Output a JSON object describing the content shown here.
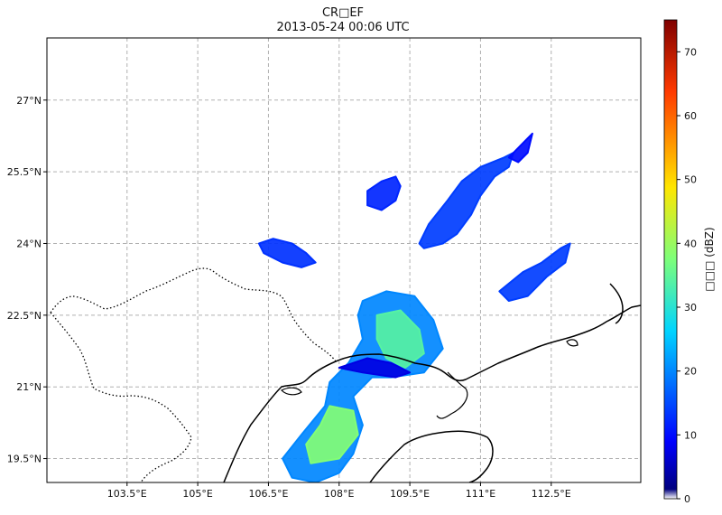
{
  "title": "CR□EF",
  "subtitle": "2013-05-24 00:06 UTC",
  "map": {
    "lon_range": [
      101.8,
      114.4
    ],
    "lat_range": [
      19.0,
      28.3
    ],
    "lon_ticks": [
      {
        "value": 103.5,
        "label": "103.5°E"
      },
      {
        "value": 105.0,
        "label": "105°E"
      },
      {
        "value": 106.5,
        "label": "106.5°E"
      },
      {
        "value": 108.0,
        "label": "108°E"
      },
      {
        "value": 109.5,
        "label": "109.5°E"
      },
      {
        "value": 111.0,
        "label": "111°E"
      },
      {
        "value": 112.5,
        "label": "112.5°E"
      }
    ],
    "lat_ticks": [
      {
        "value": 19.5,
        "label": "19.5°N"
      },
      {
        "value": 21.0,
        "label": "21°N"
      },
      {
        "value": 22.5,
        "label": "22.5°N"
      },
      {
        "value": 24.0,
        "label": "24°N"
      },
      {
        "value": 25.5,
        "label": "25.5°N"
      },
      {
        "value": 27.0,
        "label": "27°N"
      }
    ],
    "grid": true
  },
  "colorbar": {
    "label": "□□□ (dBZ)",
    "range": [
      0,
      75
    ],
    "ticks": [
      0,
      10,
      20,
      30,
      40,
      50,
      60,
      70
    ],
    "colormap": "jet"
  },
  "features": {
    "coastline_color": "#000000",
    "border_color": "#000000"
  },
  "echo_regions": [
    {
      "name": "north-cluster",
      "level": 14,
      "pts": [
        [
          109.7,
          24.0
        ],
        [
          109.9,
          24.4
        ],
        [
          110.3,
          24.9
        ],
        [
          110.6,
          25.3
        ],
        [
          111.0,
          25.6
        ],
        [
          111.5,
          25.8
        ],
        [
          111.7,
          25.9
        ],
        [
          111.6,
          25.6
        ],
        [
          111.3,
          25.4
        ],
        [
          111.0,
          25.0
        ],
        [
          110.8,
          24.6
        ],
        [
          110.5,
          24.2
        ],
        [
          110.2,
          24.0
        ],
        [
          109.8,
          23.9
        ]
      ]
    },
    {
      "name": "northwest-cluster",
      "level": 12,
      "pts": [
        [
          108.6,
          25.1
        ],
        [
          108.9,
          25.3
        ],
        [
          109.2,
          25.4
        ],
        [
          109.3,
          25.2
        ],
        [
          109.2,
          24.9
        ],
        [
          108.9,
          24.7
        ],
        [
          108.6,
          24.8
        ]
      ]
    },
    {
      "name": "west-cluster",
      "level": 13,
      "pts": [
        [
          106.3,
          24.0
        ],
        [
          106.6,
          24.1
        ],
        [
          107.0,
          24.0
        ],
        [
          107.3,
          23.8
        ],
        [
          107.5,
          23.6
        ],
        [
          107.2,
          23.5
        ],
        [
          106.8,
          23.6
        ],
        [
          106.4,
          23.8
        ]
      ]
    },
    {
      "name": "east-cluster",
      "level": 14,
      "pts": [
        [
          111.4,
          23.0
        ],
        [
          111.9,
          23.4
        ],
        [
          112.3,
          23.6
        ],
        [
          112.7,
          23.9
        ],
        [
          112.9,
          24.0
        ],
        [
          112.8,
          23.6
        ],
        [
          112.4,
          23.3
        ],
        [
          112.0,
          22.9
        ],
        [
          111.6,
          22.8
        ]
      ]
    },
    {
      "name": "far-north-strip",
      "level": 10,
      "pts": [
        [
          111.6,
          25.8
        ],
        [
          111.9,
          26.1
        ],
        [
          112.1,
          26.3
        ],
        [
          112.0,
          25.9
        ],
        [
          111.8,
          25.7
        ]
      ]
    },
    {
      "name": "main-band",
      "level": 20,
      "pts": [
        [
          108.5,
          22.8
        ],
        [
          109.0,
          23.0
        ],
        [
          109.6,
          22.9
        ],
        [
          110.0,
          22.4
        ],
        [
          110.2,
          21.8
        ],
        [
          109.8,
          21.3
        ],
        [
          109.1,
          21.2
        ],
        [
          108.7,
          21.2
        ],
        [
          108.3,
          20.8
        ],
        [
          108.5,
          20.2
        ],
        [
          108.3,
          19.6
        ],
        [
          108.0,
          19.2
        ],
        [
          107.5,
          19.0
        ],
        [
          107.0,
          19.1
        ],
        [
          106.8,
          19.5
        ],
        [
          107.2,
          20.0
        ],
        [
          107.7,
          20.6
        ],
        [
          107.8,
          21.1
        ],
        [
          108.2,
          21.5
        ],
        [
          108.5,
          22.0
        ],
        [
          108.4,
          22.5
        ]
      ]
    },
    {
      "name": "main-core-north",
      "level": 34,
      "pts": [
        [
          108.8,
          22.5
        ],
        [
          109.3,
          22.6
        ],
        [
          109.7,
          22.2
        ],
        [
          109.8,
          21.7
        ],
        [
          109.4,
          21.4
        ],
        [
          109.0,
          21.6
        ],
        [
          108.8,
          22.0
        ]
      ]
    },
    {
      "name": "main-core-south",
      "level": 38,
      "pts": [
        [
          107.8,
          20.6
        ],
        [
          108.3,
          20.5
        ],
        [
          108.4,
          20.0
        ],
        [
          108.0,
          19.5
        ],
        [
          107.4,
          19.4
        ],
        [
          107.3,
          19.8
        ],
        [
          107.6,
          20.2
        ]
      ]
    },
    {
      "name": "coast-dark-core",
      "level": 7,
      "pts": [
        [
          108.0,
          21.4
        ],
        [
          108.6,
          21.6
        ],
        [
          109.1,
          21.5
        ],
        [
          109.5,
          21.3
        ],
        [
          109.2,
          21.2
        ],
        [
          108.5,
          21.3
        ]
      ]
    }
  ]
}
